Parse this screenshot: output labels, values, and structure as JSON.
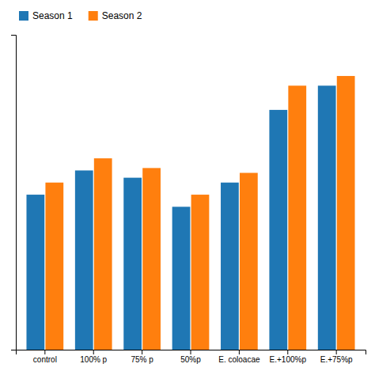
{
  "chart_data": {
    "type": "bar",
    "categories": [
      "control",
      "100% p",
      "75% p",
      "50%p",
      "E. coloacae",
      "E.+100%p",
      "E.+75%p"
    ],
    "series": [
      {
        "name": "Season 1",
        "values": [
          3.2,
          3.7,
          3.55,
          2.95,
          3.45,
          4.95,
          5.45
        ]
      },
      {
        "name": "Season 2",
        "values": [
          3.45,
          3.95,
          3.75,
          3.2,
          3.65,
          5.45,
          5.65
        ]
      }
    ],
    "ylim": [
      0,
      6.5
    ],
    "tick_labels": "x",
    "legend": "upper left"
  }
}
